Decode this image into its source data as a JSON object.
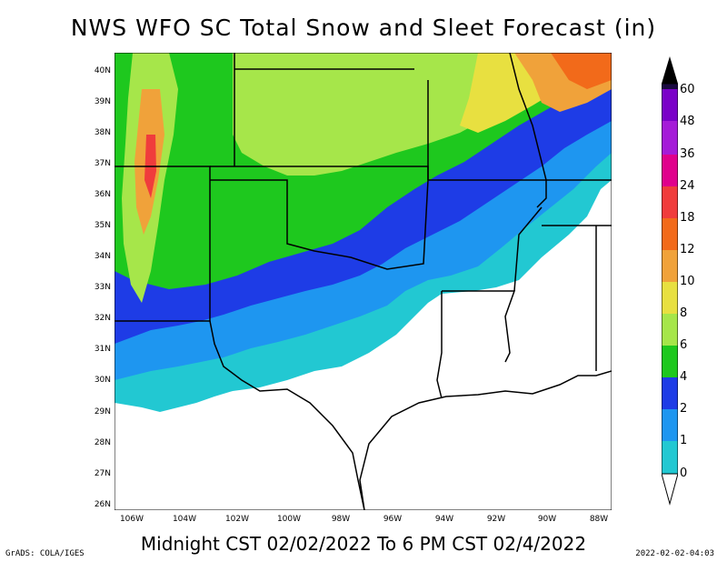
{
  "title": "NWS WFO SC Total Snow and Sleet Forecast (in)",
  "subtitle": "Midnight CST 02/02/2022 To 6 PM CST 02/4/2022",
  "credit_left": "GrADS: COLA/IGES",
  "credit_right": "2022-02-02-04:03",
  "lat_labels": [
    "40N",
    "39N",
    "38N",
    "37N",
    "36N",
    "35N",
    "34N",
    "33N",
    "32N",
    "31N",
    "30N",
    "29N",
    "28N",
    "27N",
    "26N"
  ],
  "lon_labels": [
    "106W",
    "104W",
    "102W",
    "100W",
    "98W",
    "96W",
    "94W",
    "92W",
    "90W",
    "88W"
  ],
  "colorbar": {
    "labels": [
      "60",
      "48",
      "36",
      "24",
      "18",
      "12",
      "10",
      "8",
      "6",
      "4",
      "2",
      "1",
      "0"
    ],
    "colors": [
      "#1a0a40",
      "#7a00c8",
      "#a51bd8",
      "#e0008c",
      "#f03c3c",
      "#f26a1a",
      "#f0a23a",
      "#e8e040",
      "#a6e64a",
      "#1ec81e",
      "#1e3ce6",
      "#1e96f0",
      "#22c8d2"
    ]
  }
}
